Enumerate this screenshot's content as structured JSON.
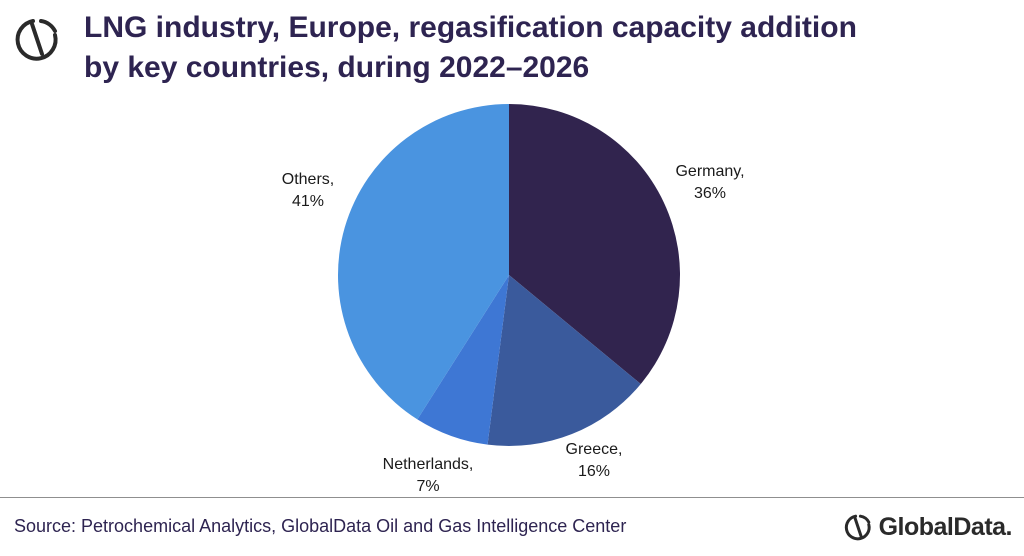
{
  "header": {
    "title_line1": "LNG industry, Europe, regasification capacity addition",
    "title_line2": "by key countries, during 2022–2026"
  },
  "chart_data": {
    "type": "pie",
    "slices": [
      {
        "name": "Germany",
        "label": "Germany,",
        "value_label": "36%",
        "value": 36,
        "color": "#31244e"
      },
      {
        "name": "Greece",
        "label": "Greece,",
        "value_label": "16%",
        "value": 16,
        "color": "#3a5a9c"
      },
      {
        "name": "Netherlands",
        "label": "Netherlands,",
        "value_label": "7%",
        "value": 7,
        "color": "#3e77d4"
      },
      {
        "name": "Others",
        "label": "Others,",
        "value_label": "41%",
        "value": 41,
        "color": "#4a94e0"
      }
    ]
  },
  "footer": {
    "source": "Source: Petrochemical Analytics, GlobalData Oil and Gas Intelligence Center",
    "brand": "GlobalData."
  },
  "colors": {
    "title": "#2e2451",
    "brand_icon": "#2a2a2a"
  },
  "icons": {
    "header_logo": "globaldata-logo-icon",
    "footer_logo": "globaldata-logo-icon"
  }
}
